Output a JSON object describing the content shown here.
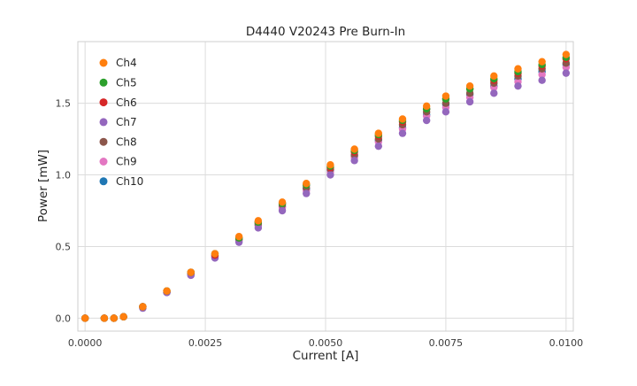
{
  "chart_data": {
    "type": "scatter",
    "title": "D4440 V20243 Pre Burn-In",
    "xlabel": "Current [A]",
    "ylabel": "Power [mW]",
    "xlim": [
      -0.00015,
      0.01015
    ],
    "ylim": [
      -0.09,
      1.93
    ],
    "x_ticks": [
      0.0,
      0.0025,
      0.005,
      0.0075,
      0.01
    ],
    "x_tick_labels": [
      "0.0000",
      "0.0025",
      "0.0050",
      "0.0075",
      "0.0100"
    ],
    "y_ticks": [
      0.0,
      0.5,
      1.0,
      1.5
    ],
    "y_tick_labels": [
      "0.0",
      "0.5",
      "1.0",
      "1.5"
    ],
    "grid": true,
    "legend_position": "upper left",
    "x": [
      0.0,
      0.0004,
      0.0006,
      0.0008,
      0.0012,
      0.0017,
      0.0022,
      0.0027,
      0.0032,
      0.0036,
      0.0041,
      0.0046,
      0.0051,
      0.0056,
      0.0061,
      0.0066,
      0.0071,
      0.0075,
      0.008,
      0.0085,
      0.009,
      0.0095,
      0.01
    ],
    "series": [
      {
        "name": "Ch4",
        "color": "#ff7f0e",
        "values": [
          0.0,
          0.0,
          0.0,
          0.01,
          0.08,
          0.19,
          0.32,
          0.45,
          0.57,
          0.68,
          0.81,
          0.94,
          1.07,
          1.18,
          1.29,
          1.39,
          1.48,
          1.55,
          1.62,
          1.69,
          1.74,
          1.79,
          1.84
        ]
      },
      {
        "name": "Ch5",
        "color": "#2ca02c",
        "values": [
          0.0,
          0.0,
          0.0,
          0.01,
          0.08,
          0.19,
          0.32,
          0.45,
          0.56,
          0.67,
          0.8,
          0.93,
          1.06,
          1.17,
          1.28,
          1.38,
          1.46,
          1.53,
          1.6,
          1.67,
          1.72,
          1.77,
          1.82
        ]
      },
      {
        "name": "Ch6",
        "color": "#d62728",
        "values": [
          0.0,
          0.0,
          0.0,
          0.01,
          0.08,
          0.19,
          0.32,
          0.44,
          0.56,
          0.67,
          0.8,
          0.93,
          1.05,
          1.16,
          1.27,
          1.37,
          1.46,
          1.53,
          1.6,
          1.66,
          1.71,
          1.76,
          1.81
        ]
      },
      {
        "name": "Ch7",
        "color": "#9467bd",
        "values": [
          0.0,
          0.0,
          0.0,
          0.01,
          0.07,
          0.18,
          0.3,
          0.42,
          0.53,
          0.63,
          0.75,
          0.87,
          1.0,
          1.1,
          1.2,
          1.29,
          1.38,
          1.44,
          1.51,
          1.57,
          1.62,
          1.66,
          1.71
        ]
      },
      {
        "name": "Ch8",
        "color": "#8c564b",
        "values": [
          0.0,
          0.0,
          0.0,
          0.01,
          0.08,
          0.18,
          0.31,
          0.44,
          0.55,
          0.66,
          0.79,
          0.91,
          1.04,
          1.14,
          1.25,
          1.35,
          1.44,
          1.5,
          1.57,
          1.64,
          1.69,
          1.74,
          1.78
        ]
      },
      {
        "name": "Ch9",
        "color": "#e377c2",
        "values": [
          0.0,
          0.0,
          0.0,
          0.01,
          0.08,
          0.18,
          0.3,
          0.43,
          0.54,
          0.65,
          0.77,
          0.89,
          1.02,
          1.12,
          1.23,
          1.32,
          1.41,
          1.47,
          1.54,
          1.61,
          1.65,
          1.7,
          1.75
        ]
      },
      {
        "name": "Ch10",
        "color": "#1f77b4",
        "values": [
          0.0,
          0.0,
          0.0,
          0.01,
          0.08,
          0.18,
          0.31,
          0.43,
          0.55,
          0.65,
          0.78,
          0.9,
          1.03,
          1.13,
          1.24,
          1.33,
          1.42,
          1.49,
          1.56,
          1.62,
          1.67,
          1.72,
          1.77
        ]
      }
    ],
    "marker": "circle",
    "marker_color_names": {
      "Ch4": "orange",
      "Ch5": "green",
      "Ch6": "red",
      "Ch7": "purple",
      "Ch8": "brown",
      "Ch9": "pink",
      "Ch10": "blue"
    },
    "grid_color": "#dcdcdc",
    "border_color": "#cfcfcf",
    "background_color": "#ffffff"
  }
}
